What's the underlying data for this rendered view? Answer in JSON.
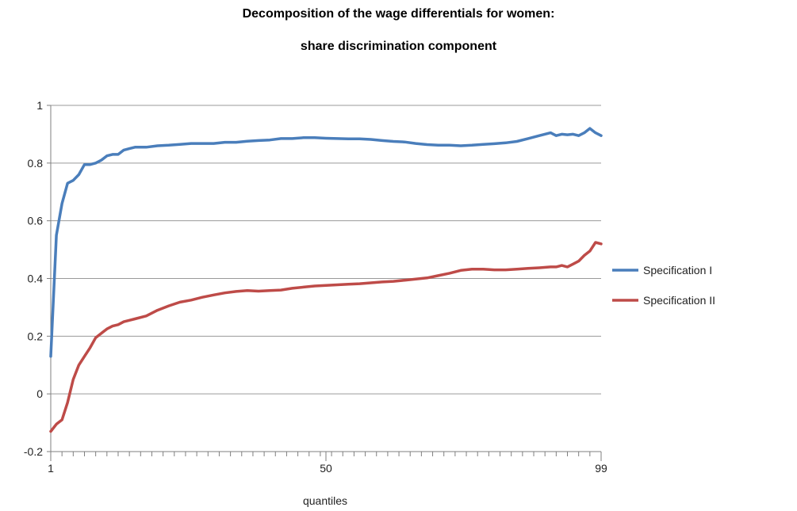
{
  "chart_data": {
    "type": "line",
    "title": "Decomposition of the wage differentials for women:",
    "subtitle": "share discrimination component",
    "xlabel": "quantiles",
    "ylabel": "",
    "xlim": [
      1,
      99
    ],
    "ylim": [
      -0.2,
      1
    ],
    "yticks": [
      -0.2,
      0,
      0.2,
      0.4,
      0.6,
      0.8,
      1
    ],
    "ytick_labels": [
      "-0.2",
      "0",
      "0.2",
      "0.4",
      "0.6",
      "0.8",
      "1"
    ],
    "xtick_labels": [
      {
        "x": 1,
        "label": "1"
      },
      {
        "x": 50,
        "label": "50"
      },
      {
        "x": 99,
        "label": "99"
      }
    ],
    "grid": true,
    "legend": "right",
    "series": [
      {
        "name": "Specification I",
        "color": "#4a7ebb",
        "x": [
          1,
          2,
          3,
          4,
          5,
          6,
          7,
          8,
          9,
          10,
          11,
          12,
          13,
          14,
          15,
          16,
          18,
          20,
          22,
          24,
          26,
          28,
          30,
          32,
          34,
          36,
          38,
          40,
          42,
          44,
          46,
          48,
          50,
          52,
          54,
          56,
          58,
          60,
          62,
          64,
          66,
          68,
          70,
          72,
          74,
          76,
          78,
          80,
          82,
          84,
          86,
          88,
          90,
          91,
          92,
          93,
          94,
          95,
          96,
          97,
          98,
          99
        ],
        "values": [
          0.13,
          0.55,
          0.66,
          0.73,
          0.74,
          0.76,
          0.795,
          0.795,
          0.8,
          0.81,
          0.825,
          0.83,
          0.83,
          0.845,
          0.85,
          0.855,
          0.855,
          0.86,
          0.862,
          0.865,
          0.868,
          0.868,
          0.868,
          0.872,
          0.872,
          0.876,
          0.878,
          0.88,
          0.885,
          0.885,
          0.888,
          0.888,
          0.886,
          0.885,
          0.884,
          0.884,
          0.882,
          0.878,
          0.875,
          0.873,
          0.868,
          0.864,
          0.862,
          0.862,
          0.86,
          0.862,
          0.865,
          0.867,
          0.87,
          0.875,
          0.885,
          0.895,
          0.905,
          0.895,
          0.9,
          0.898,
          0.9,
          0.895,
          0.905,
          0.92,
          0.905,
          0.895
        ]
      },
      {
        "name": "Specification II",
        "color": "#be4b48",
        "x": [
          1,
          2,
          3,
          4,
          5,
          6,
          7,
          8,
          9,
          10,
          11,
          12,
          13,
          14,
          15,
          16,
          18,
          20,
          22,
          24,
          26,
          28,
          30,
          32,
          34,
          36,
          38,
          40,
          42,
          44,
          46,
          48,
          50,
          52,
          54,
          56,
          58,
          60,
          62,
          64,
          66,
          68,
          70,
          72,
          74,
          76,
          78,
          80,
          82,
          84,
          86,
          88,
          90,
          91,
          92,
          93,
          94,
          95,
          96,
          97,
          98,
          99
        ],
        "values": [
          -0.13,
          -0.105,
          -0.09,
          -0.03,
          0.05,
          0.1,
          0.13,
          0.16,
          0.195,
          0.21,
          0.225,
          0.235,
          0.24,
          0.25,
          0.255,
          0.26,
          0.27,
          0.29,
          0.305,
          0.318,
          0.325,
          0.335,
          0.343,
          0.35,
          0.355,
          0.358,
          0.356,
          0.358,
          0.36,
          0.366,
          0.37,
          0.374,
          0.376,
          0.378,
          0.38,
          0.382,
          0.385,
          0.388,
          0.39,
          0.394,
          0.398,
          0.402,
          0.41,
          0.418,
          0.428,
          0.432,
          0.432,
          0.43,
          0.43,
          0.432,
          0.435,
          0.437,
          0.44,
          0.44,
          0.445,
          0.44,
          0.45,
          0.46,
          0.48,
          0.495,
          0.525,
          0.52
        ]
      }
    ]
  }
}
